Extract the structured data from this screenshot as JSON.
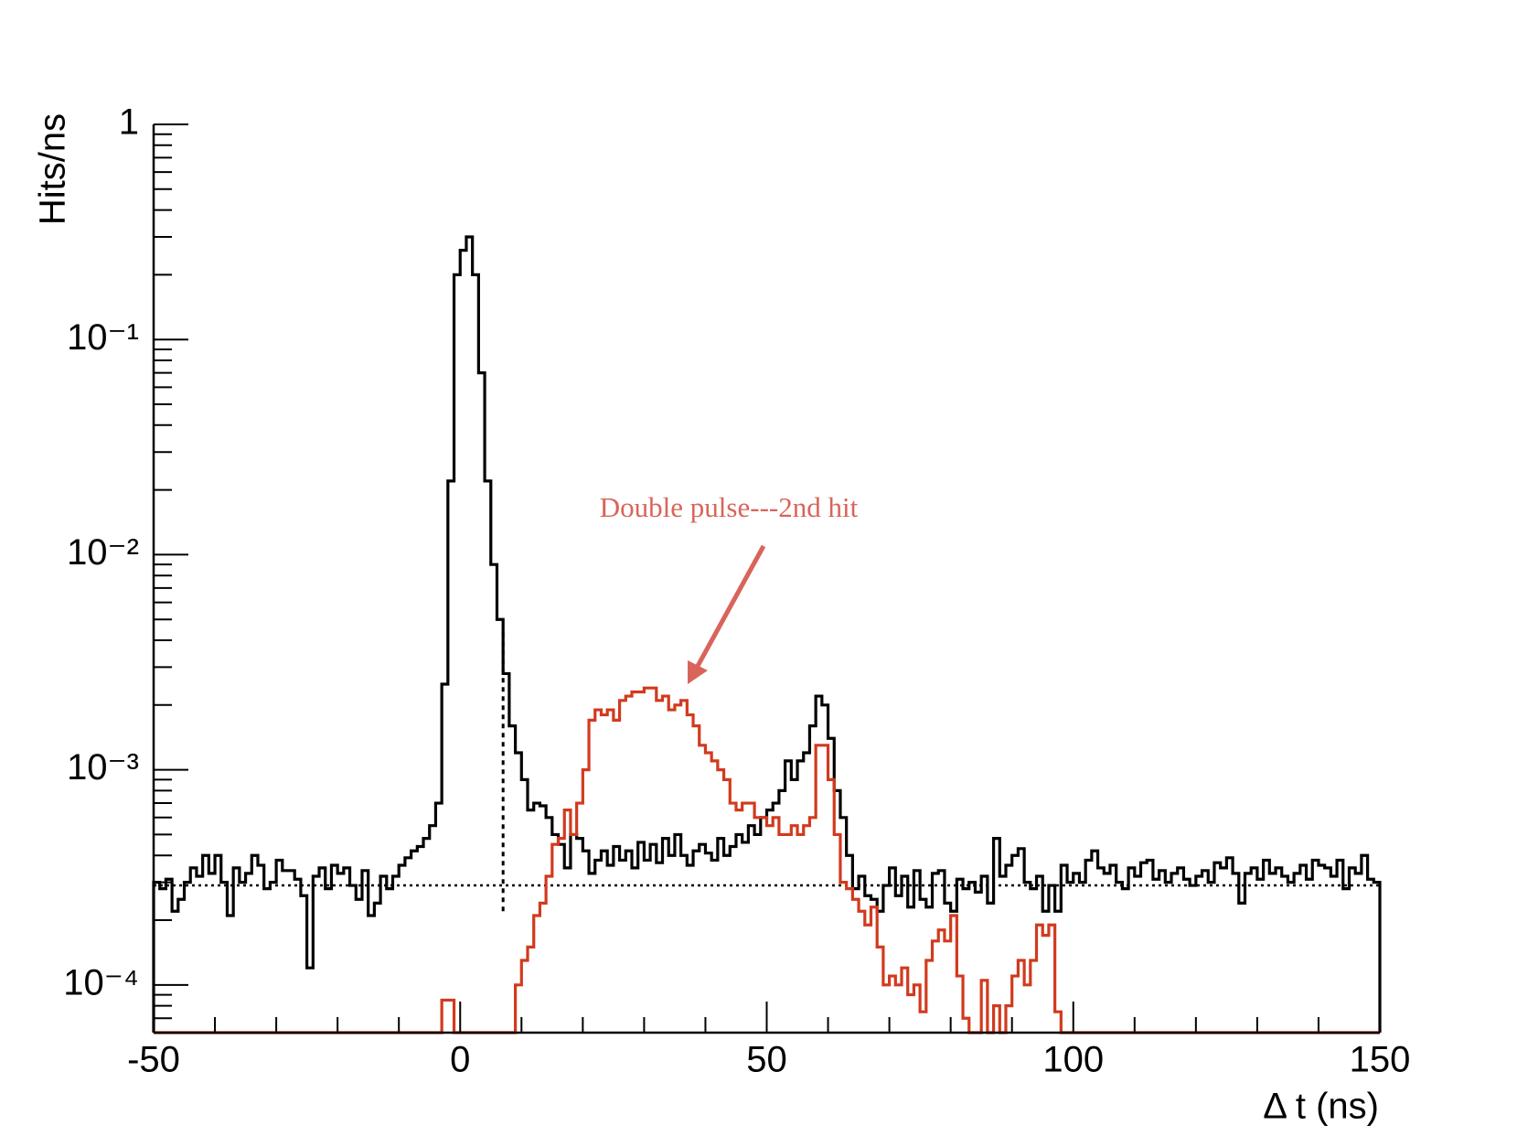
{
  "chart_data": {
    "type": "histogram",
    "annotation": "Double pulse---2nd hit",
    "xlabel": "Δ t (ns)",
    "ylabel": "Hits/ns",
    "log_y": true,
    "xlim": [
      -50,
      150
    ],
    "ylim": [
      6e-05,
      1
    ],
    "xticks": [
      -50,
      0,
      50,
      100,
      150
    ],
    "xminorticks": [
      -40,
      -30,
      -20,
      -10,
      10,
      20,
      30,
      40,
      60,
      70,
      80,
      90,
      110,
      120,
      130,
      140
    ],
    "yticks": [
      1,
      {
        "value": 0.1,
        "label": "10⁻¹"
      },
      {
        "value": 0.01,
        "label": "10⁻²"
      },
      {
        "value": 0.001,
        "label": "10⁻³"
      },
      {
        "value": 0.0001,
        "label": "10⁻⁴"
      }
    ],
    "y_minor_per_decade": 9,
    "hline": 0.00029,
    "vline": {
      "x": 7,
      "y": [
        0.00022,
        0.0045
      ]
    },
    "bins": [
      -50,
      -49,
      -48,
      -47,
      -46,
      -45,
      -44,
      -43,
      -42,
      -41,
      -40,
      -39,
      -38,
      -37,
      -36,
      -35,
      -34,
      -33,
      -32,
      -31,
      -30,
      -29,
      -28,
      -27,
      -26,
      -25,
      -24,
      -23,
      -22,
      -21,
      -20,
      -19,
      -18,
      -17,
      -16,
      -15,
      -14,
      -13,
      -12,
      -11,
      -10,
      -9,
      -8,
      -7,
      -6,
      -5,
      -4,
      -3,
      -2,
      -1,
      0,
      1,
      2,
      3,
      4,
      5,
      6,
      7,
      8,
      9,
      10,
      11,
      12,
      13,
      14,
      15,
      16,
      17,
      18,
      19,
      20,
      21,
      22,
      23,
      24,
      25,
      26,
      27,
      28,
      29,
      30,
      31,
      32,
      33,
      34,
      35,
      36,
      37,
      38,
      39,
      40,
      41,
      42,
      43,
      44,
      45,
      46,
      47,
      48,
      49,
      50,
      51,
      52,
      53,
      54,
      55,
      56,
      57,
      58,
      59,
      60,
      61,
      62,
      63,
      64,
      65,
      66,
      67,
      68,
      69,
      70,
      71,
      72,
      73,
      74,
      75,
      76,
      77,
      78,
      79,
      80,
      81,
      82,
      83,
      84,
      85,
      86,
      87,
      88,
      89,
      90,
      91,
      92,
      93,
      94,
      95,
      96,
      97,
      98,
      99,
      100,
      101,
      102,
      103,
      104,
      105,
      106,
      107,
      108,
      109,
      110,
      111,
      112,
      113,
      114,
      115,
      116,
      117,
      118,
      119,
      120,
      121,
      122,
      123,
      124,
      125,
      126,
      127,
      128,
      129,
      130,
      131,
      132,
      133,
      134,
      135,
      136,
      137,
      138,
      139,
      140,
      141,
      142,
      143,
      144,
      145,
      146,
      147,
      148,
      149,
      150
    ],
    "series": [
      {
        "color": "#000000",
        "values": [
          0.0003,
          0.00028,
          0.00031,
          0.00022,
          0.00025,
          0.0003,
          0.00035,
          0.00032,
          0.0004,
          0.00033,
          0.0004,
          0.0003,
          0.00021,
          0.00035,
          0.0003,
          0.00033,
          0.0004,
          0.00036,
          0.00028,
          0.0003,
          0.00038,
          0.00034,
          0.00034,
          0.00031,
          0.00026,
          0.00012,
          0.00032,
          0.00035,
          0.00028,
          0.00036,
          0.00033,
          0.00035,
          0.00029,
          0.00025,
          0.00034,
          0.00021,
          0.00024,
          0.00032,
          0.00028,
          0.00032,
          0.00036,
          0.00039,
          0.00042,
          0.00044,
          0.00048,
          0.00055,
          0.0007,
          0.0025,
          0.022,
          0.2,
          0.26,
          0.3,
          0.2,
          0.07,
          0.022,
          0.009,
          0.005,
          0.0028,
          0.0016,
          0.0012,
          0.0009,
          0.00065,
          0.0007,
          0.00068,
          0.0006,
          0.0005,
          0.00045,
          0.00035,
          0.0005,
          0.00048,
          0.00042,
          0.00033,
          0.00038,
          0.00042,
          0.00036,
          0.00044,
          0.00038,
          0.00042,
          0.00035,
          0.00046,
          0.00038,
          0.00045,
          0.00037,
          0.00048,
          0.0004,
          0.0005,
          0.0004,
          0.00036,
          0.00042,
          0.00045,
          0.00041,
          0.00038,
          0.00048,
          0.0004,
          0.00044,
          0.0005,
          0.00046,
          0.00055,
          0.0005,
          0.0006,
          0.00065,
          0.0007,
          0.0008,
          0.0011,
          0.0009,
          0.0011,
          0.0012,
          0.0016,
          0.0022,
          0.002,
          0.0014,
          0.0008,
          0.0006,
          0.0004,
          0.00028,
          0.00032,
          0.00026,
          0.00025,
          0.00022,
          0.00029,
          0.00035,
          0.00026,
          0.00032,
          0.00023,
          0.00034,
          0.00025,
          0.00023,
          0.00033,
          0.00034,
          0.00024,
          0.00022,
          0.00031,
          0.00028,
          0.0003,
          0.00027,
          0.00032,
          0.00024,
          0.00048,
          0.00032,
          0.00036,
          0.0004,
          0.00043,
          0.0003,
          0.00028,
          0.00032,
          0.00022,
          0.00029,
          0.00022,
          0.00036,
          0.0003,
          0.00033,
          0.0003,
          0.00038,
          0.00042,
          0.00035,
          0.00033,
          0.00036,
          0.0003,
          0.00028,
          0.00035,
          0.00032,
          0.00037,
          0.00038,
          0.00031,
          0.00034,
          0.0003,
          0.00033,
          0.00035,
          0.00031,
          0.00029,
          0.00032,
          0.00034,
          0.0003,
          0.00037,
          0.00035,
          0.00039,
          0.00033,
          0.00024,
          0.00033,
          0.00035,
          0.00031,
          0.00038,
          0.00033,
          0.00035,
          0.00032,
          0.0003,
          0.00033,
          0.00036,
          0.00031,
          0.00038,
          0.00036,
          0.00035,
          0.00032,
          0.00038,
          0.00028,
          0.00035,
          0.00033,
          0.0004,
          0.00031,
          0.0003
        ]
      },
      {
        "color": "#d13a1e",
        "values": [
          0,
          0,
          0,
          0,
          0,
          0,
          0,
          0,
          0,
          0,
          0,
          0,
          0,
          0,
          0,
          0,
          0,
          0,
          0,
          0,
          0,
          0,
          0,
          0,
          0,
          0,
          0,
          0,
          0,
          0,
          0,
          0,
          0,
          0,
          0,
          0,
          0,
          0,
          0,
          0,
          0,
          0,
          0,
          0,
          0,
          0,
          0,
          8.5e-05,
          8.5e-05,
          0,
          0,
          0,
          0,
          0,
          0,
          0,
          0,
          0,
          0,
          0.0001,
          0.00013,
          0.00015,
          0.00021,
          0.00024,
          0.00032,
          0.00045,
          0.00048,
          0.00065,
          0.0005,
          0.0007,
          0.001,
          0.0017,
          0.0019,
          0.0018,
          0.0019,
          0.0017,
          0.0021,
          0.0022,
          0.0023,
          0.0023,
          0.0024,
          0.0024,
          0.0021,
          0.0022,
          0.0019,
          0.002,
          0.0021,
          0.0018,
          0.0016,
          0.0013,
          0.0012,
          0.0011,
          0.001,
          0.0009,
          0.0007,
          0.00065,
          0.0007,
          0.0007,
          0.0006,
          0.0006,
          0.00055,
          0.0006,
          0.0005,
          0.0005,
          0.00055,
          0.0005,
          0.00055,
          0.0006,
          0.0013,
          0.0013,
          0.0009,
          0.0005,
          0.0003,
          0.00028,
          0.00025,
          0.00022,
          0.00019,
          0.00023,
          0.00015,
          0.0001,
          0.00011,
          0.0001,
          0.00012,
          9e-05,
          0.0001,
          7.5e-05,
          0.00013,
          0.00016,
          0.00018,
          0.00016,
          0.00021,
          0.00011,
          7e-05,
          0,
          0,
          0.000105,
          0,
          8e-05,
          0,
          8e-05,
          0.00011,
          0.00013,
          0.0001,
          0.00013,
          0.00019,
          0.00017,
          0.00019,
          7.5e-05,
          0,
          0,
          0,
          0,
          0,
          0,
          0,
          0,
          0,
          0,
          0,
          0,
          0,
          0,
          0,
          0,
          0,
          0,
          0,
          0,
          0,
          0,
          0,
          0,
          0,
          0,
          0,
          0,
          0,
          0,
          0,
          0,
          0,
          0,
          0,
          0,
          0,
          0,
          0,
          0,
          0,
          0,
          0,
          0,
          0,
          0,
          0,
          0,
          0,
          0,
          0,
          0
        ]
      }
    ]
  }
}
